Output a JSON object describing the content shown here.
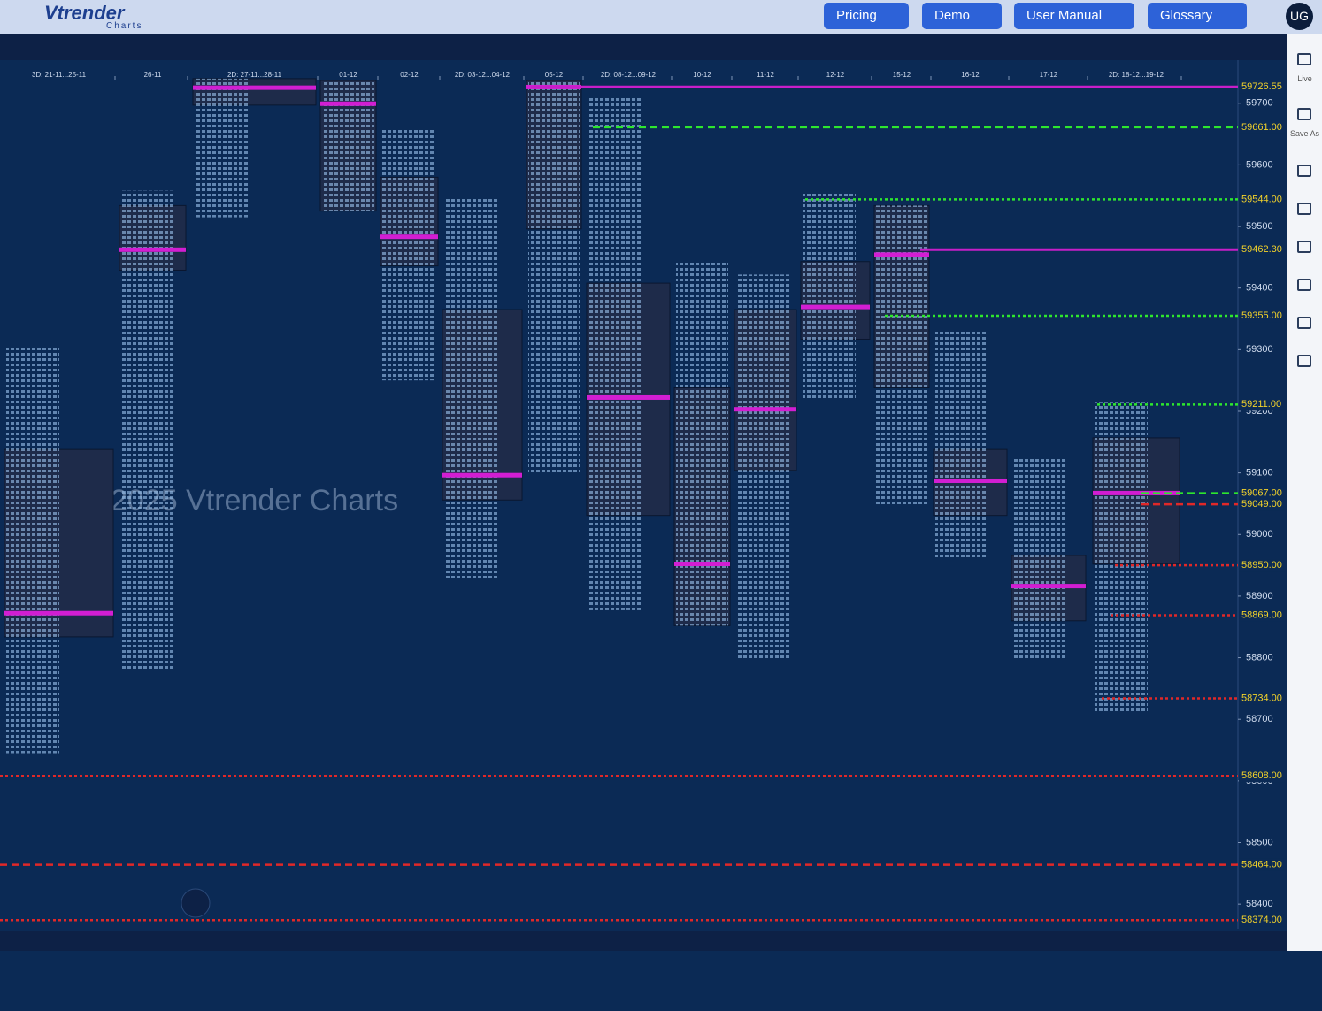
{
  "header": {
    "logo": "Vtrender",
    "logo_sub": "Charts",
    "nav": [
      "Pricing",
      "Demo",
      "User Manual",
      "Glossary"
    ],
    "user": "UG"
  },
  "sidebar": [
    "Live",
    "Save As"
  ],
  "chart_data": {
    "type": "market-profile",
    "watermark": "2025 Vtrender Charts",
    "sessions": [
      {
        "label": "3D: 21-11...25-11",
        "high": 59307,
        "low": 58645,
        "vah": 59138,
        "val": 58834,
        "poc": 58873
      },
      {
        "label": "26-11",
        "high": 59558,
        "low": 58780,
        "vah": 59534,
        "val": 59429,
        "poc": 59463
      },
      {
        "label": "2D: 27-11...28-11",
        "high": 59740,
        "low": 59515,
        "vah": 59740,
        "val": 59697,
        "poc": 59726
      },
      {
        "label": "01-12",
        "high": 59737,
        "low": 59525,
        "vah": 59737,
        "val": 59525,
        "poc": 59700
      },
      {
        "label": "02-12",
        "high": 59658,
        "low": 59250,
        "vah": 59580,
        "val": 59436,
        "poc": 59484
      },
      {
        "label": "2D: 03-12...04-12",
        "high": 59548,
        "low": 58925,
        "vah": 59365,
        "val": 59056,
        "poc": 59097
      },
      {
        "label": "05-12",
        "high": 59737,
        "low": 59100,
        "vah": 59737,
        "val": 59496,
        "poc": 59727
      },
      {
        "label": "2D: 08-12...09-12",
        "high": 59711,
        "low": 58877,
        "vah": 59408,
        "val": 59031,
        "poc": 59223
      },
      {
        "label": "10-12",
        "high": 59443,
        "low": 58852,
        "vah": 59238,
        "val": 58852,
        "poc": 58953
      },
      {
        "label": "11-12",
        "high": 59422,
        "low": 58798,
        "vah": 59365,
        "val": 59104,
        "poc": 59204
      },
      {
        "label": "12-12",
        "high": 59554,
        "low": 59221,
        "vah": 59443,
        "val": 59317,
        "poc": 59370
      },
      {
        "label": "15-12",
        "high": 59534,
        "low": 59049,
        "vah": 59534,
        "val": 59238,
        "poc": 59455
      },
      {
        "label": "16-12",
        "high": 59333,
        "low": 58960,
        "vah": 59138,
        "val": 59031,
        "poc": 59088
      },
      {
        "label": "17-12",
        "high": 59128,
        "low": 58798,
        "vah": 58966,
        "val": 58860,
        "poc": 58917
      },
      {
        "label": "2D: 18-12...19-12",
        "high": 59214,
        "low": 58712,
        "vah": 59157,
        "val": 58952,
        "poc": 59068
      }
    ],
    "ylim": [
      58360,
      59770
    ],
    "yticks": [
      59700,
      59600,
      59500,
      59400,
      59300,
      59200,
      59100,
      59000,
      58900,
      58800,
      58700,
      58600,
      58500,
      58400
    ],
    "levels": [
      {
        "value": 59726.55,
        "label": "59726.55",
        "color": "#c81ec8",
        "style": "solid"
      },
      {
        "value": 59661,
        "label": "59661.00",
        "color": "#2ee62e",
        "style": "dashed"
      },
      {
        "value": 59544,
        "label": "59544.00",
        "color": "#2ee62e",
        "style": "dotted"
      },
      {
        "value": 59462.3,
        "label": "59462.30",
        "color": "#c81ec8",
        "style": "solid"
      },
      {
        "value": 59355,
        "label": "59355.00",
        "color": "#2ee62e",
        "style": "dotted"
      },
      {
        "value": 59211,
        "label": "59211.00",
        "color": "#2ee62e",
        "style": "dotted"
      },
      {
        "value": 59067,
        "label": "59067.00",
        "color": "#2ee62e",
        "style": "dashed"
      },
      {
        "value": 59049,
        "label": "59049.00",
        "color": "#e02828",
        "style": "dashed"
      },
      {
        "value": 58950,
        "label": "58950.00",
        "color": "#e02828",
        "style": "dotted"
      },
      {
        "value": 58869,
        "label": "58869.00",
        "color": "#e02828",
        "style": "dotted"
      },
      {
        "value": 58734,
        "label": "58734.00",
        "color": "#e02828",
        "style": "dotted"
      },
      {
        "value": 58608,
        "label": "58608.00",
        "color": "#e02828",
        "style": "dotted"
      },
      {
        "value": 58464,
        "label": "58464.00",
        "color": "#e02828",
        "style": "dashed"
      },
      {
        "value": 58374,
        "label": "58374.00",
        "color": "#e02828",
        "style": "dotted"
      }
    ]
  }
}
